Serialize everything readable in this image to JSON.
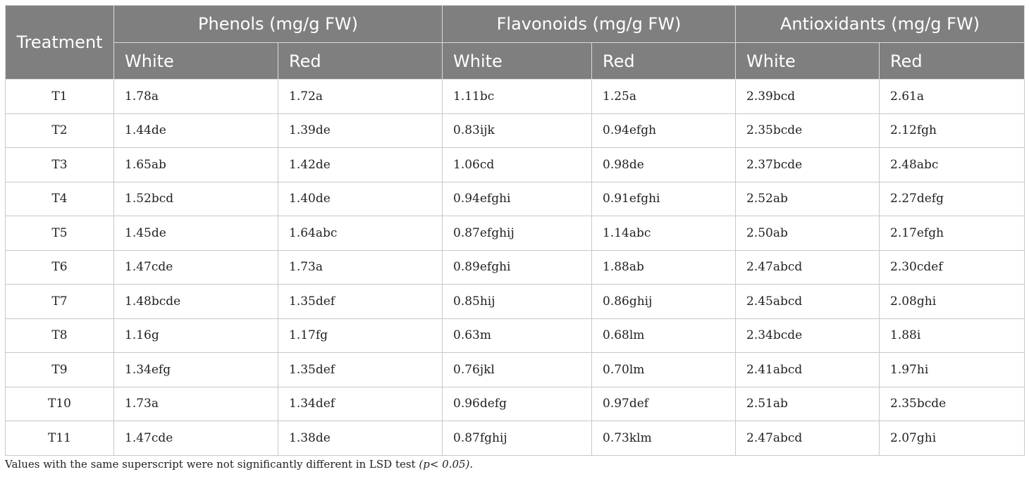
{
  "table": {
    "treatment_header": "Treatment",
    "groups": [
      "Phenols (mg/g FW)",
      "Flavonoids (mg/g FW)",
      "Antioxidants (mg/g FW)"
    ],
    "subheaders": [
      "White",
      "Red",
      "White",
      "Red",
      "White",
      "Red"
    ],
    "rows": [
      {
        "treatment": "T1",
        "cells": [
          "1.78a",
          "1.72a",
          "1.11bc",
          "1.25a",
          "2.39bcd",
          "2.61a"
        ]
      },
      {
        "treatment": "T2",
        "cells": [
          "1.44de",
          "1.39de",
          "0.83ijk",
          "0.94efgh",
          "2.35bcde",
          "2.12fgh"
        ]
      },
      {
        "treatment": "T3",
        "cells": [
          "1.65ab",
          "1.42de",
          "1.06cd",
          "0.98de",
          "2.37bcde",
          "2.48abc"
        ]
      },
      {
        "treatment": "T4",
        "cells": [
          "1.52bcd",
          "1.40de",
          "0.94efghi",
          "0.91efghi",
          "2.52ab",
          "2.27defg"
        ]
      },
      {
        "treatment": "T5",
        "cells": [
          "1.45de",
          "1.64abc",
          "0.87efghij",
          "1.14abc",
          "2.50ab",
          "2.17efgh"
        ]
      },
      {
        "treatment": "T6",
        "cells": [
          "1.47cde",
          "1.73a",
          "0.89efghi",
          "1.88ab",
          "2.47abcd",
          "2.30cdef"
        ]
      },
      {
        "treatment": "T7",
        "cells": [
          "1.48bcde",
          "1.35def",
          "0.85hij",
          "0.86ghij",
          "2.45abcd",
          "2.08ghi"
        ]
      },
      {
        "treatment": "T8",
        "cells": [
          "1.16g",
          "1.17fg",
          "0.63m",
          "0.68lm",
          "2.34bcde",
          "1.88i"
        ]
      },
      {
        "treatment": "T9",
        "cells": [
          "1.34efg",
          "1.35def",
          "0.76jkl",
          "0.70lm",
          "2.41abcd",
          "1.97hi"
        ]
      },
      {
        "treatment": "T10",
        "cells": [
          "1.73a",
          "1.34def",
          "0.96defg",
          "0.97def",
          "2.51ab",
          "2.35bcde"
        ]
      },
      {
        "treatment": "T11",
        "cells": [
          "1.47cde",
          "1.38de",
          "0.87fghij",
          "0.73klm",
          "2.47abcd",
          "2.07ghi"
        ]
      }
    ]
  },
  "footnote": {
    "text": "Values with the same superscript were not significantly different in LSD test ",
    "emphasis": "(p< 0.05)",
    "end": "."
  }
}
